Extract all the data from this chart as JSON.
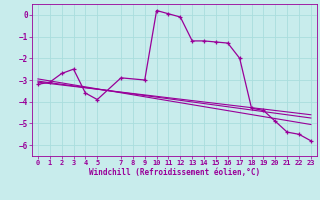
{
  "xlabel": "Windchill (Refroidissement éolien,°C)",
  "bg_color": "#c8ecec",
  "line_color": "#990099",
  "grid_color": "#aadddd",
  "ylim": [
    -6.5,
    0.5
  ],
  "xlim": [
    -0.5,
    23.5
  ],
  "yticks": [
    0,
    -1,
    -2,
    -3,
    -4,
    -5,
    -6
  ],
  "xticks": [
    0,
    1,
    2,
    3,
    4,
    5,
    7,
    8,
    9,
    10,
    11,
    12,
    13,
    14,
    15,
    16,
    17,
    18,
    19,
    20,
    21,
    22,
    23
  ],
  "series_x": [
    0,
    1,
    2,
    3,
    4,
    5,
    7,
    9,
    10,
    11,
    12,
    13,
    14,
    15,
    16,
    17,
    18,
    19,
    20,
    21,
    22,
    23
  ],
  "series_y": [
    -3.2,
    -3.1,
    -2.7,
    -2.5,
    -3.6,
    -3.9,
    -2.9,
    -3.0,
    0.2,
    0.05,
    -0.1,
    -1.2,
    -1.2,
    -1.25,
    -1.3,
    -2.0,
    -4.3,
    -4.4,
    -4.9,
    -5.4,
    -5.5,
    -5.8
  ],
  "trend1_x": [
    0,
    23
  ],
  "trend1_y": [
    -3.05,
    -4.75
  ],
  "trend2_x": [
    0,
    23
  ],
  "trend2_y": [
    -2.95,
    -5.05
  ],
  "trend3_x": [
    0,
    23
  ],
  "trend3_y": [
    -3.1,
    -4.6
  ]
}
